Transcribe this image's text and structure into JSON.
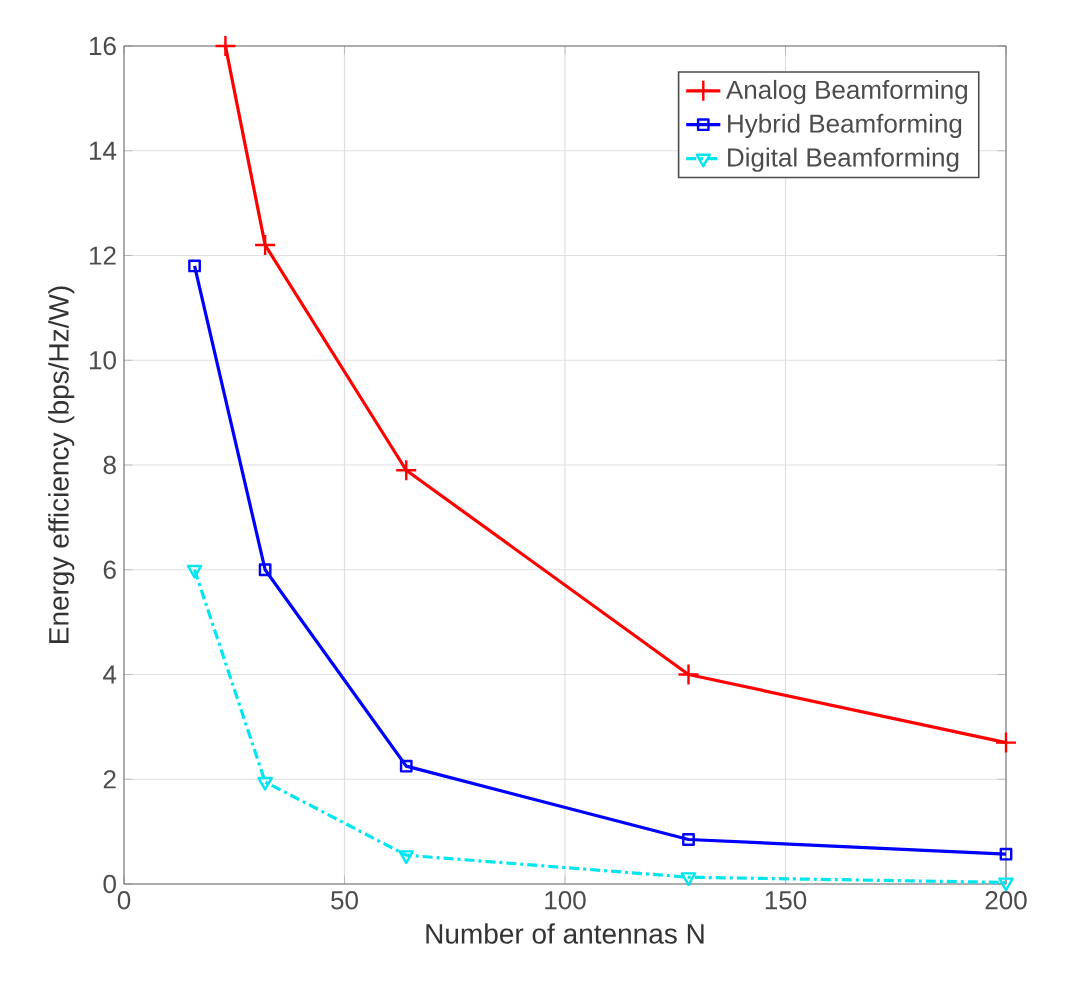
{
  "chart_data": {
    "type": "line",
    "xlabel": "Number of antennas N",
    "ylabel": "Energy efficiency (bps/Hz/W)",
    "xlim": [
      0,
      200
    ],
    "ylim": [
      0,
      16
    ],
    "xticks": [
      0,
      50,
      100,
      150,
      200
    ],
    "yticks": [
      0,
      2,
      4,
      6,
      8,
      10,
      12,
      14,
      16
    ],
    "grid": true,
    "legend": "top right",
    "series": [
      {
        "name": "Analog Beamforming",
        "color": "#ff0000",
        "marker": "cross",
        "line_style": "solid",
        "x": [
          23,
          32,
          64,
          128,
          200
        ],
        "values": [
          16,
          12.2,
          7.9,
          4.0,
          2.7
        ]
      },
      {
        "name": "Hybrid Beamforming",
        "color": "#0000ff",
        "marker": "square",
        "line_style": "solid",
        "x": [
          16,
          32,
          64,
          128,
          200
        ],
        "values": [
          11.8,
          6.0,
          2.25,
          0.85,
          0.57
        ]
      },
      {
        "name": "Digital Beamforming",
        "color": "#00e5ee",
        "marker": "triangle",
        "line_style": "dashdot",
        "x": [
          16,
          32,
          64,
          128,
          200
        ],
        "values": [
          6.0,
          1.95,
          0.55,
          0.13,
          0.03
        ]
      }
    ]
  }
}
